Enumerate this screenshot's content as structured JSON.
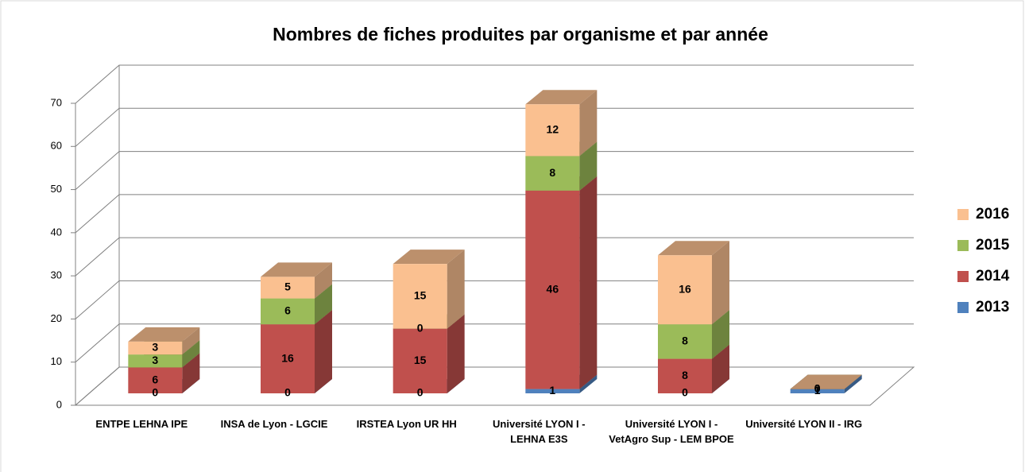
{
  "chart_data": {
    "type": "bar3d_stacked",
    "title": "Nombres de fiches produites par organisme et par année",
    "categories": [
      "ENTPE LEHNA IPE",
      "INSA de Lyon - LGCIE",
      "IRSTEA Lyon UR HH",
      "Université LYON I - LEHNA E3S",
      "Université LYON I - VetAgro Sup - LEM BPOE",
      "Université LYON II - IRG"
    ],
    "series": [
      {
        "name": "2013",
        "color": "#4f81bd",
        "values": [
          0,
          0,
          0,
          1,
          0,
          1
        ]
      },
      {
        "name": "2014",
        "color": "#c0504d",
        "values": [
          6,
          16,
          15,
          46,
          8,
          0
        ]
      },
      {
        "name": "2015",
        "color": "#9bbb59",
        "values": [
          3,
          6,
          0,
          8,
          8,
          0
        ]
      },
      {
        "name": "2016",
        "color": "#fac090",
        "values": [
          3,
          5,
          15,
          12,
          16,
          0
        ]
      }
    ],
    "ylim": [
      0,
      70
    ],
    "yticks": [
      0,
      10,
      20,
      30,
      40,
      50,
      60,
      70
    ],
    "grid": true,
    "legend": "right"
  }
}
